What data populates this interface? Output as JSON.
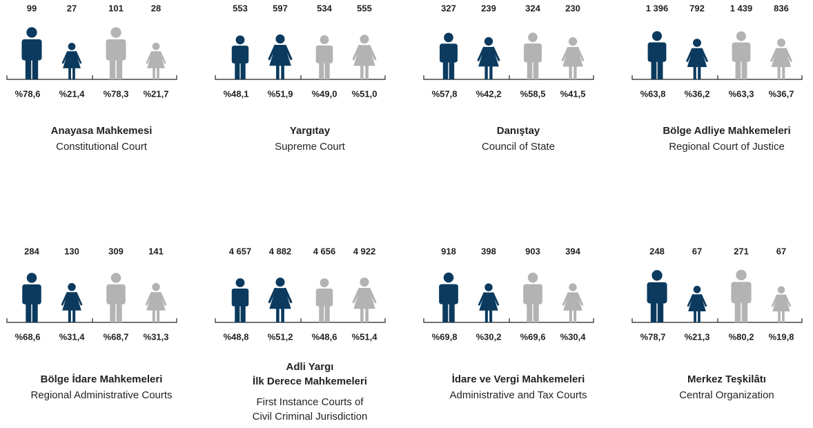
{
  "colors": [
    "#0b3a5e",
    "#0b3a5e",
    "#b3b3b3",
    "#b3b3b3"
  ],
  "panels": [
    {
      "title": [
        "Anayasa Mahkemesi"
      ],
      "subtitle": [
        "Constitutional Court"
      ],
      "counts": [
        99,
        27,
        101,
        28
      ],
      "shares": [
        78.6,
        21.4,
        78.3,
        21.7
      ],
      "share_labels": [
        "%78,6",
        "%21,4",
        "%78,3",
        "%21,7"
      ]
    },
    {
      "title": [
        "Yargıtay"
      ],
      "subtitle": [
        "Supreme Court"
      ],
      "counts": [
        553,
        597,
        534,
        555
      ],
      "shares": [
        48.1,
        51.9,
        49.0,
        51.0
      ],
      "share_labels": [
        "%48,1",
        "%51,9",
        "%49,0",
        "%51,0"
      ]
    },
    {
      "title": [
        "Danıştay"
      ],
      "subtitle": [
        "Council of State"
      ],
      "counts": [
        327,
        239,
        324,
        230
      ],
      "shares": [
        57.8,
        42.2,
        58.5,
        41.5
      ],
      "share_labels": [
        "%57,8",
        "%42,2",
        "%58,5",
        "%41,5"
      ]
    },
    {
      "title": [
        "Bölge Adliye Mahkemeleri"
      ],
      "subtitle": [
        "Regional Court of Justice"
      ],
      "counts": [
        1396,
        792,
        1439,
        836
      ],
      "count_labels": [
        "1 396",
        "792",
        "1 439",
        "836"
      ],
      "shares": [
        63.8,
        36.2,
        63.3,
        36.7
      ],
      "share_labels": [
        "%63,8",
        "%36,2",
        "%63,3",
        "%36,7"
      ]
    },
    {
      "title": [
        "Bölge İdare Mahkemeleri"
      ],
      "subtitle": [
        "Regional Administrative Courts"
      ],
      "counts": [
        284,
        130,
        309,
        141
      ],
      "shares": [
        68.6,
        31.4,
        68.7,
        31.3
      ],
      "share_labels": [
        "%68,6",
        "%31,4",
        "%68,7",
        "%31,3"
      ]
    },
    {
      "title": [
        "Adli Yargı",
        "İlk Derece Mahkemeleri"
      ],
      "subtitle": [
        "First Instance Courts of",
        "Civil Criminal Jurisdiction"
      ],
      "counts": [
        4657,
        4882,
        4656,
        4922
      ],
      "count_labels": [
        "4 657",
        "4 882",
        "4 656",
        "4 922"
      ],
      "shares": [
        48.8,
        51.2,
        48.6,
        51.4
      ],
      "share_labels": [
        "%48,8",
        "%51,2",
        "%48,6",
        "%51,4"
      ]
    },
    {
      "title": [
        "İdare ve Vergi Mahkemeleri"
      ],
      "subtitle": [
        "Administrative and Tax Courts"
      ],
      "counts": [
        918,
        398,
        903,
        394
      ],
      "shares": [
        69.8,
        30.2,
        69.6,
        30.4
      ],
      "share_labels": [
        "%69,8",
        "%30,2",
        "%69,6",
        "%30,4"
      ]
    },
    {
      "title": [
        "Merkez Teşkilâtı"
      ],
      "subtitle": [
        "Central Organization"
      ],
      "counts": [
        248,
        67,
        271,
        67
      ],
      "shares": [
        78.7,
        21.3,
        80.2,
        19.8
      ],
      "share_labels": [
        "%78,7",
        "%21,3",
        "%80,2",
        "%19,8"
      ]
    }
  ]
}
